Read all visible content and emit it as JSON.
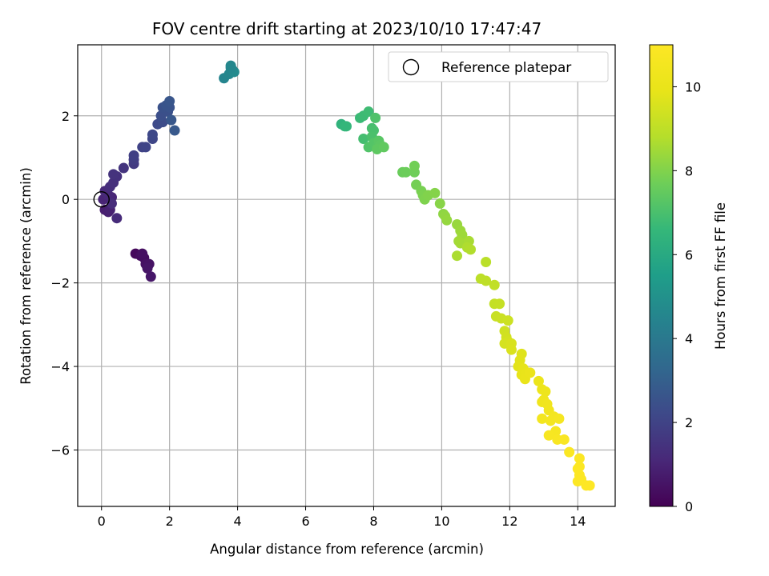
{
  "chart_data": {
    "type": "scatter",
    "title": "FOV centre drift starting at 2023/10/10 17:47:47",
    "xlabel": "Angular distance from reference (arcmin)",
    "ylabel": "Rotation from reference (arcmin)",
    "xlim": [
      -0.7,
      15.1
    ],
    "ylim": [
      -7.35,
      3.7
    ],
    "xticks": [
      0,
      2,
      4,
      6,
      8,
      10,
      12,
      14
    ],
    "yticks": [
      2,
      0,
      -2,
      -4,
      -6
    ],
    "xtick_labels": [
      "0",
      "2",
      "4",
      "6",
      "8",
      "10",
      "12",
      "14"
    ],
    "ytick_labels": [
      "2",
      "0",
      "−2",
      "−4",
      "−6"
    ],
    "grid": true,
    "legend": {
      "position": "top-right",
      "entries": [
        "Reference platepar"
      ]
    },
    "reference_point": {
      "x": 0,
      "y": 0
    },
    "colorbar": {
      "label": "Hours from first FF file",
      "range": [
        0,
        11
      ],
      "ticks": [
        0,
        2,
        4,
        6,
        8,
        10
      ],
      "tick_labels": [
        "0",
        "2",
        "4",
        "6",
        "8",
        "10"
      ],
      "colormap": "viridis"
    },
    "points": [
      [
        1.0,
        -1.3,
        0.2
      ],
      [
        1.15,
        -1.35,
        0.3
      ],
      [
        1.25,
        -1.4,
        0.35
      ],
      [
        1.2,
        -1.3,
        0.4
      ],
      [
        1.3,
        -1.55,
        0.45
      ],
      [
        1.4,
        -1.55,
        0.5
      ],
      [
        1.35,
        -1.65,
        0.55
      ],
      [
        1.45,
        -1.85,
        0.6
      ],
      [
        0.1,
        -0.25,
        0.8
      ],
      [
        0.2,
        -0.3,
        0.85
      ],
      [
        0.25,
        -0.25,
        0.9
      ],
      [
        0.15,
        0.05,
        0.95
      ],
      [
        0.05,
        0.0,
        1.0
      ],
      [
        0.3,
        0.05,
        1.05
      ],
      [
        0.2,
        0.1,
        1.1
      ],
      [
        0.1,
        0.2,
        1.15
      ],
      [
        0.45,
        -0.45,
        1.2
      ],
      [
        0.3,
        -0.1,
        1.25
      ],
      [
        0.25,
        0.3,
        1.3
      ],
      [
        0.35,
        0.4,
        1.35
      ],
      [
        0.45,
        0.55,
        1.4
      ],
      [
        0.35,
        0.6,
        1.45
      ],
      [
        0.65,
        0.75,
        1.5
      ],
      [
        0.95,
        0.85,
        1.7
      ],
      [
        0.95,
        0.95,
        1.8
      ],
      [
        0.95,
        1.05,
        1.9
      ],
      [
        1.2,
        1.25,
        2.0
      ],
      [
        1.3,
        1.25,
        2.05
      ],
      [
        1.5,
        1.45,
        2.1
      ],
      [
        1.5,
        1.55,
        2.15
      ],
      [
        1.65,
        1.8,
        2.25
      ],
      [
        1.8,
        1.85,
        2.3
      ],
      [
        1.75,
        2.0,
        2.4
      ],
      [
        1.95,
        2.1,
        2.45
      ],
      [
        1.8,
        2.2,
        2.5
      ],
      [
        2.0,
        2.2,
        2.55
      ],
      [
        1.9,
        2.25,
        2.6
      ],
      [
        2.0,
        2.35,
        2.65
      ],
      [
        2.05,
        1.9,
        2.7
      ],
      [
        2.15,
        1.65,
        2.75
      ],
      [
        3.6,
        2.9,
        4.5
      ],
      [
        3.75,
        3.0,
        4.55
      ],
      [
        3.8,
        3.2,
        4.6
      ],
      [
        3.85,
        3.1,
        4.65
      ],
      [
        3.9,
        3.05,
        4.7
      ],
      [
        3.8,
        3.15,
        4.6
      ],
      [
        7.05,
        1.8,
        6.4
      ],
      [
        7.15,
        1.75,
        6.5
      ],
      [
        7.2,
        1.75,
        6.55
      ],
      [
        7.6,
        1.95,
        6.7
      ],
      [
        7.7,
        2.0,
        6.75
      ],
      [
        7.85,
        2.1,
        6.8
      ],
      [
        7.7,
        1.45,
        6.9
      ],
      [
        7.95,
        1.7,
        6.95
      ],
      [
        8.0,
        1.65,
        7.0
      ],
      [
        7.95,
        1.5,
        7.05
      ],
      [
        8.05,
        1.95,
        7.1
      ],
      [
        7.85,
        1.25,
        7.15
      ],
      [
        8.0,
        1.35,
        7.2
      ],
      [
        8.1,
        1.25,
        7.25
      ],
      [
        8.15,
        1.4,
        7.3
      ],
      [
        8.2,
        1.3,
        7.35
      ],
      [
        8.1,
        1.2,
        7.4
      ],
      [
        8.3,
        1.25,
        7.45
      ],
      [
        8.85,
        0.65,
        7.6
      ],
      [
        8.95,
        0.65,
        7.65
      ],
      [
        9.2,
        0.65,
        7.7
      ],
      [
        9.2,
        0.8,
        7.75
      ],
      [
        9.25,
        0.35,
        7.8
      ],
      [
        9.4,
        0.2,
        7.85
      ],
      [
        9.45,
        0.1,
        7.9
      ],
      [
        9.5,
        0.0,
        7.95
      ],
      [
        9.6,
        0.1,
        8.0
      ],
      [
        9.8,
        0.15,
        8.05
      ],
      [
        9.95,
        -0.1,
        8.1
      ],
      [
        10.05,
        -0.35,
        8.2
      ],
      [
        10.1,
        -0.4,
        8.25
      ],
      [
        10.15,
        -0.5,
        8.3
      ],
      [
        10.45,
        -0.6,
        8.35
      ],
      [
        10.55,
        -0.75,
        8.4
      ],
      [
        10.6,
        -0.85,
        8.45
      ],
      [
        10.5,
        -1.0,
        8.5
      ],
      [
        10.55,
        -1.05,
        8.55
      ],
      [
        10.8,
        -1.0,
        8.6
      ],
      [
        10.45,
        -1.35,
        8.65
      ],
      [
        10.75,
        -1.15,
        8.7
      ],
      [
        10.85,
        -1.2,
        8.75
      ],
      [
        11.3,
        -1.5,
        8.9
      ],
      [
        11.15,
        -1.9,
        8.95
      ],
      [
        11.3,
        -1.95,
        9.0
      ],
      [
        11.55,
        -2.05,
        9.05
      ],
      [
        11.55,
        -2.5,
        9.1
      ],
      [
        11.7,
        -2.5,
        9.15
      ],
      [
        11.6,
        -2.8,
        9.2
      ],
      [
        11.75,
        -2.85,
        9.25
      ],
      [
        11.95,
        -2.9,
        9.3
      ],
      [
        11.85,
        -3.15,
        9.35
      ],
      [
        11.9,
        -3.3,
        9.4
      ],
      [
        11.95,
        -3.4,
        9.45
      ],
      [
        11.85,
        -3.45,
        9.5
      ],
      [
        12.05,
        -3.45,
        9.55
      ],
      [
        12.05,
        -3.6,
        9.6
      ],
      [
        12.35,
        -3.7,
        9.7
      ],
      [
        12.3,
        -3.85,
        9.75
      ],
      [
        12.25,
        -4.0,
        9.8
      ],
      [
        12.4,
        -4.05,
        9.85
      ],
      [
        12.35,
        -4.2,
        9.9
      ],
      [
        12.5,
        -4.15,
        9.95
      ],
      [
        12.45,
        -4.3,
        10.0
      ],
      [
        12.6,
        -4.15,
        10.05
      ],
      [
        12.85,
        -4.35,
        10.1
      ],
      [
        12.95,
        -4.55,
        10.15
      ],
      [
        13.05,
        -4.6,
        10.2
      ],
      [
        13.0,
        -4.8,
        10.25
      ],
      [
        12.95,
        -4.85,
        10.3
      ],
      [
        13.1,
        -4.9,
        10.35
      ],
      [
        13.15,
        -5.05,
        10.4
      ],
      [
        12.95,
        -5.25,
        10.45
      ],
      [
        13.3,
        -5.2,
        10.5
      ],
      [
        13.2,
        -5.3,
        10.55
      ],
      [
        13.45,
        -5.25,
        10.6
      ],
      [
        13.35,
        -5.55,
        10.65
      ],
      [
        13.15,
        -5.65,
        10.7
      ],
      [
        13.4,
        -5.75,
        10.75
      ],
      [
        13.6,
        -5.75,
        10.8
      ],
      [
        13.75,
        -6.05,
        10.85
      ],
      [
        14.05,
        -6.2,
        10.9
      ],
      [
        14.05,
        -6.4,
        10.92
      ],
      [
        14.0,
        -6.45,
        10.94
      ],
      [
        14.05,
        -6.6,
        10.95
      ],
      [
        14.0,
        -6.75,
        10.96
      ],
      [
        14.1,
        -6.7,
        10.97
      ],
      [
        14.25,
        -6.85,
        10.98
      ],
      [
        14.35,
        -6.85,
        10.99
      ]
    ]
  }
}
